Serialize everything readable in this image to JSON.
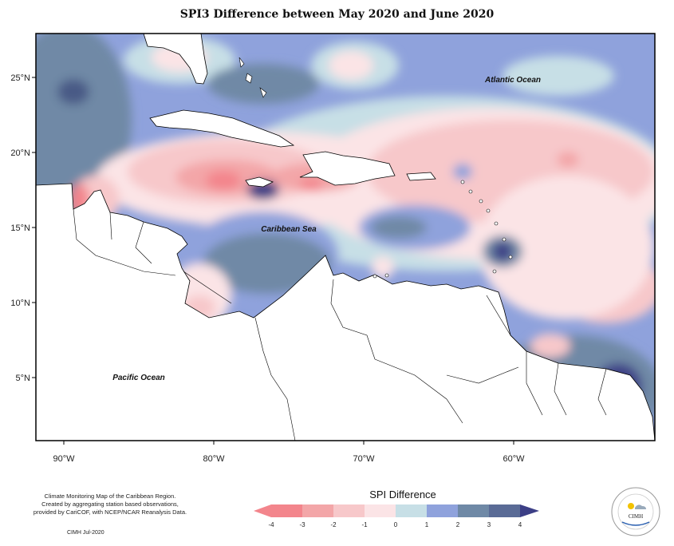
{
  "title": "SPI3 Difference between May 2020 and June 2020",
  "map": {
    "lon_labels": [
      "90°W",
      "80°W",
      "70°W",
      "60°W"
    ],
    "lat_labels": [
      "25°N",
      "20°N",
      "15°N",
      "10°N",
      "5°N"
    ],
    "place_labels": {
      "atlantic": "Atlantic Ocean",
      "caribbean": "Caribbean Sea",
      "pacific": "Pacific Ocean"
    }
  },
  "colorbar": {
    "title": "SPI Difference",
    "ticks": [
      "-4",
      "-3",
      "-2",
      "-1",
      "0",
      "1",
      "2",
      "3",
      "4"
    ],
    "colors": [
      "#f3858c",
      "#f3a6a8",
      "#f7c8ca",
      "#fbe4e6",
      "#c7dfe6",
      "#8fa2dc",
      "#6f89a6",
      "#5a6b96",
      "#3c3f86"
    ]
  },
  "credit": {
    "line1": "Climate Monitoring Map of the Caribbean Region.",
    "line2": "Created by aggregating station based observations,",
    "line3": "provided by CariCOF, with NCEP/NCAR Reanalysis Data.",
    "line4": "CIMH Jul-2020"
  },
  "logo": {
    "text": "CIMH"
  }
}
